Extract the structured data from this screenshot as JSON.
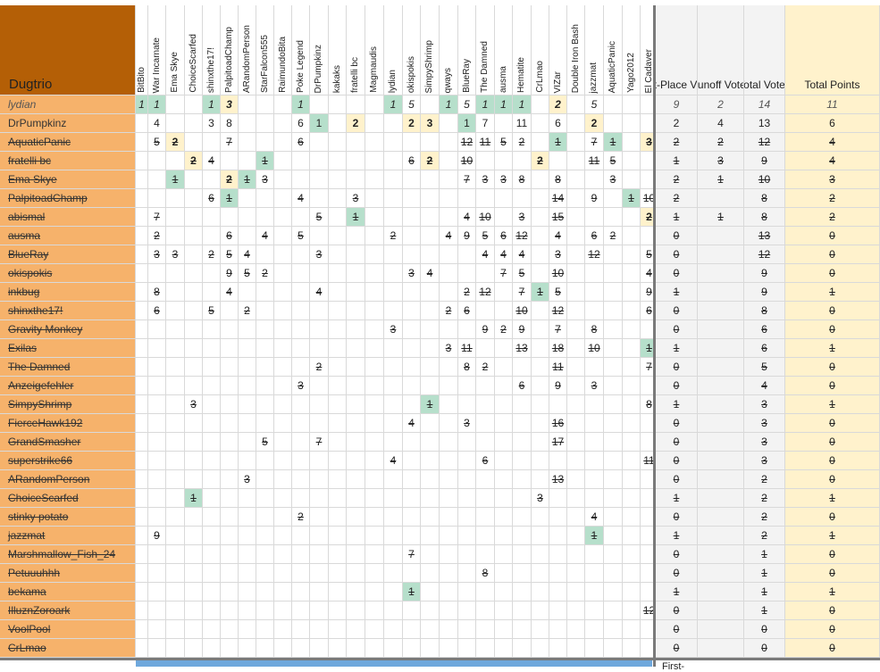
{
  "sheet": {
    "corner_title": "Dugtrio",
    "columns": [
      "BitBito",
      "War Incarnate",
      "Ema Skye",
      "ChoiceScarfed",
      "shinxthe17!",
      "PalpitoadChamp",
      "ARandomPerson",
      "StarFalcon555",
      "RaimundoBita",
      "Poke Legend",
      "DrPumpkinz",
      "kakaks",
      "fratelli bc",
      "Magmaudis",
      "lydian",
      "okispokis",
      "SimpyShrimp",
      "qways",
      "BlueRay",
      "The Damned",
      "ausma",
      "Hematite",
      "CrLmao",
      "VIZar",
      "Double Iron Bash",
      "jazzmat",
      "AquaticPanic",
      "Yago2012",
      "El Cadaver"
    ],
    "summary_headers": [
      "First-Place Votes",
      "Runoff Votes",
      "Total Votes",
      "Total Points"
    ],
    "bottom_label": "First-",
    "colors": {
      "name_bg": "#f6b26b",
      "title_bg": "#b45f06",
      "first_place": "#b6dfcb",
      "runoff": "#fff2cc",
      "summary_bg": "#f3f3f3",
      "points_bg": "#fff2cc"
    },
    "rows": [
      {
        "name": "lydian",
        "style": "italic",
        "votes": {
          "0": "1",
          "1": "1",
          "4": "1",
          "5": "3",
          "9": "1",
          "14": "1",
          "15": "5",
          "17": "1",
          "18": "5",
          "19": "1",
          "20": "1",
          "21": "1",
          "23": "2",
          "25": "5"
        },
        "green": [
          0,
          1,
          4,
          9,
          14,
          17,
          19,
          20,
          21
        ],
        "yellow": [
          5,
          23
        ],
        "summary": [
          "9",
          "2",
          "14",
          "11"
        ]
      },
      {
        "name": "DrPumpkinz",
        "style": "normal",
        "votes": {
          "1": "4",
          "4": "3",
          "5": "8",
          "9": "6",
          "10": "1",
          "12": "2",
          "15": "2",
          "16": "3",
          "18": "1",
          "19": "7",
          "21": "11",
          "23": "6",
          "25": "2"
        },
        "green": [
          10,
          18
        ],
        "yellow": [
          12,
          15,
          16,
          25
        ],
        "summary": [
          "2",
          "4",
          "13",
          "6"
        ]
      },
      {
        "name": "AquaticPanic",
        "style": "strike",
        "votes": {
          "1": "5",
          "2": "2",
          "5": "7",
          "9": "6",
          "18": "12",
          "19": "11",
          "20": "5",
          "21": "2",
          "23": "1",
          "25": "7",
          "26": "1",
          "28": "3"
        },
        "green": [
          23,
          26
        ],
        "yellow": [
          2,
          28
        ],
        "summary": [
          "2",
          "2",
          "12",
          "4"
        ]
      },
      {
        "name": "fratelli bc",
        "style": "strike",
        "votes": {
          "3": "2",
          "4": "4",
          "7": "1",
          "15": "6",
          "16": "2",
          "18": "10",
          "22": "2",
          "25": "11",
          "26": "5"
        },
        "green": [
          7
        ],
        "yellow": [
          3,
          16,
          22
        ],
        "summary": [
          "1",
          "3",
          "9",
          "4"
        ]
      },
      {
        "name": "Ema Skye",
        "style": "strike",
        "votes": {
          "2": "1",
          "5": "2",
          "6": "1",
          "7": "3",
          "18": "7",
          "19": "3",
          "20": "3",
          "21": "8",
          "23": "8",
          "26": "3"
        },
        "green": [
          2,
          6
        ],
        "yellow": [
          5
        ],
        "summary": [
          "2",
          "1",
          "10",
          "3"
        ]
      },
      {
        "name": "PalpitoadChamp",
        "style": "strike",
        "votes": {
          "4": "6",
          "5": "1",
          "9": "4",
          "12": "3",
          "23": "14",
          "25": "9",
          "27": "1",
          "28": "10"
        },
        "green": [
          5,
          27
        ],
        "yellow": [],
        "summary": [
          "2",
          "",
          "8",
          "2"
        ]
      },
      {
        "name": "abismal",
        "style": "strike",
        "votes": {
          "1": "7",
          "10": "5",
          "12": "1",
          "18": "4",
          "19": "10",
          "21": "3",
          "23": "15",
          "28": "2"
        },
        "green": [
          12
        ],
        "yellow": [
          28
        ],
        "summary": [
          "1",
          "1",
          "8",
          "2"
        ]
      },
      {
        "name": "ausma",
        "style": "strike",
        "votes": {
          "1": "2",
          "5": "6",
          "7": "4",
          "9": "5",
          "14": "2",
          "17": "4",
          "18": "9",
          "19": "5",
          "20": "6",
          "21": "12",
          "23": "4",
          "25": "6",
          "26": "2"
        },
        "green": [],
        "yellow": [],
        "summary": [
          "0",
          "",
          "13",
          "0"
        ]
      },
      {
        "name": "BlueRay",
        "style": "strike",
        "votes": {
          "1": "3",
          "2": "3",
          "4": "2",
          "5": "5",
          "6": "4",
          "10": "3",
          "19": "4",
          "20": "4",
          "21": "4",
          "23": "3",
          "25": "12",
          "28": "5"
        },
        "green": [],
        "yellow": [],
        "summary": [
          "0",
          "",
          "12",
          "0"
        ]
      },
      {
        "name": "okispokis",
        "style": "strike",
        "votes": {
          "5": "9",
          "6": "5",
          "7": "2",
          "15": "3",
          "16": "4",
          "20": "7",
          "21": "5",
          "23": "10",
          "28": "4"
        },
        "green": [],
        "yellow": [],
        "summary": [
          "0",
          "",
          "9",
          "0"
        ]
      },
      {
        "name": "inkbug",
        "style": "strike",
        "votes": {
          "1": "8",
          "5": "4",
          "10": "4",
          "18": "2",
          "19": "12",
          "21": "7",
          "22": "1",
          "23": "5",
          "28": "9"
        },
        "green": [
          22
        ],
        "yellow": [],
        "summary": [
          "1",
          "",
          "9",
          "1"
        ]
      },
      {
        "name": "shinxthe17!",
        "style": "strike",
        "votes": {
          "1": "6",
          "4": "5",
          "6": "2",
          "17": "2",
          "18": "6",
          "21": "10",
          "23": "12",
          "28": "6"
        },
        "green": [],
        "yellow": [],
        "summary": [
          "0",
          "",
          "8",
          "0"
        ]
      },
      {
        "name": "Gravity Monkey",
        "style": "strike",
        "votes": {
          "14": "3",
          "19": "9",
          "20": "2",
          "21": "9",
          "23": "7",
          "25": "8"
        },
        "green": [],
        "yellow": [],
        "summary": [
          "0",
          "",
          "6",
          "0"
        ]
      },
      {
        "name": "Exilas",
        "style": "strike",
        "votes": {
          "17": "3",
          "18": "11",
          "21": "13",
          "23": "18",
          "25": "10",
          "28": "1"
        },
        "green": [
          28
        ],
        "yellow": [],
        "summary": [
          "1",
          "",
          "6",
          "1"
        ]
      },
      {
        "name": "The Damned",
        "style": "strike",
        "votes": {
          "10": "2",
          "18": "8",
          "19": "2",
          "23": "11",
          "28": "7"
        },
        "green": [],
        "yellow": [],
        "summary": [
          "0",
          "",
          "5",
          "0"
        ]
      },
      {
        "name": "Anzeigefehler",
        "style": "strike",
        "votes": {
          "9": "3",
          "21": "6",
          "23": "9",
          "25": "3"
        },
        "green": [],
        "yellow": [],
        "summary": [
          "0",
          "",
          "4",
          "0"
        ]
      },
      {
        "name": "SimpyShrimp",
        "style": "strike",
        "votes": {
          "3": "3",
          "16": "1",
          "28": "8"
        },
        "green": [
          16
        ],
        "yellow": [],
        "summary": [
          "1",
          "",
          "3",
          "1"
        ]
      },
      {
        "name": "FierceHawk192",
        "style": "strike",
        "votes": {
          "15": "4",
          "18": "3",
          "23": "16"
        },
        "green": [],
        "yellow": [],
        "summary": [
          "0",
          "",
          "3",
          "0"
        ]
      },
      {
        "name": "GrandSmasher",
        "style": "strike",
        "votes": {
          "7": "5",
          "10": "7",
          "23": "17"
        },
        "green": [],
        "yellow": [],
        "summary": [
          "0",
          "",
          "3",
          "0"
        ]
      },
      {
        "name": "superstrike66",
        "style": "strike",
        "votes": {
          "14": "4",
          "19": "6",
          "28": "11"
        },
        "green": [],
        "yellow": [],
        "summary": [
          "0",
          "",
          "3",
          "0"
        ]
      },
      {
        "name": "ARandomPerson",
        "style": "strike",
        "votes": {
          "6": "3",
          "23": "13"
        },
        "green": [],
        "yellow": [],
        "summary": [
          "0",
          "",
          "2",
          "0"
        ]
      },
      {
        "name": "ChoiceScarfed",
        "style": "strike",
        "votes": {
          "3": "1",
          "22": "3"
        },
        "green": [
          3
        ],
        "yellow": [],
        "summary": [
          "1",
          "",
          "2",
          "1"
        ]
      },
      {
        "name": "stinky potato",
        "style": "strike",
        "votes": {
          "9": "2",
          "25": "4"
        },
        "green": [],
        "yellow": [],
        "summary": [
          "0",
          "",
          "2",
          "0"
        ]
      },
      {
        "name": "jazzmat",
        "style": "strike",
        "votes": {
          "1": "9",
          "25": "1"
        },
        "green": [
          25
        ],
        "yellow": [],
        "summary": [
          "1",
          "",
          "2",
          "1"
        ]
      },
      {
        "name": "Marshmallow_Fish_24",
        "style": "strike",
        "votes": {
          "15": "7"
        },
        "green": [],
        "yellow": [],
        "summary": [
          "0",
          "",
          "1",
          "0"
        ]
      },
      {
        "name": "Petuuuhhh",
        "style": "strike",
        "votes": {
          "19": "8"
        },
        "green": [],
        "yellow": [],
        "summary": [
          "0",
          "",
          "1",
          "0"
        ]
      },
      {
        "name": "bekama",
        "style": "strike",
        "votes": {
          "15": "1"
        },
        "green": [
          15
        ],
        "yellow": [],
        "summary": [
          "1",
          "",
          "1",
          "1"
        ]
      },
      {
        "name": "IlluznZoroark",
        "style": "strike",
        "votes": {
          "28": "12"
        },
        "green": [],
        "yellow": [],
        "summary": [
          "0",
          "",
          "1",
          "0"
        ]
      },
      {
        "name": "VoolPool",
        "style": "strike",
        "votes": {},
        "green": [],
        "yellow": [],
        "summary": [
          "0",
          "",
          "0",
          "0"
        ]
      },
      {
        "name": "CrLmao",
        "style": "strike",
        "votes": {},
        "green": [],
        "yellow": [],
        "summary": [
          "0",
          "",
          "0",
          "0"
        ]
      }
    ]
  }
}
